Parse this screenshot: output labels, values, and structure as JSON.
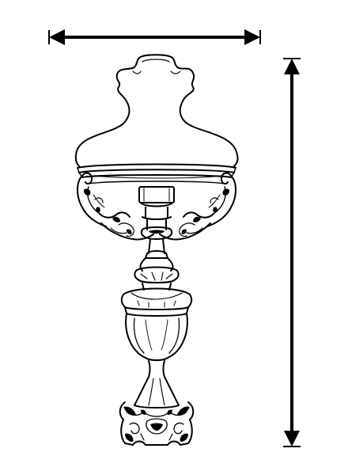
{
  "image": {
    "subject": "lamp-line-drawing",
    "icons": [
      "width-dimension-arrow",
      "height-dimension-arrow",
      "lamp-illustration"
    ],
    "colors": {
      "ink": "#000000",
      "background": "#ffffff"
    }
  }
}
